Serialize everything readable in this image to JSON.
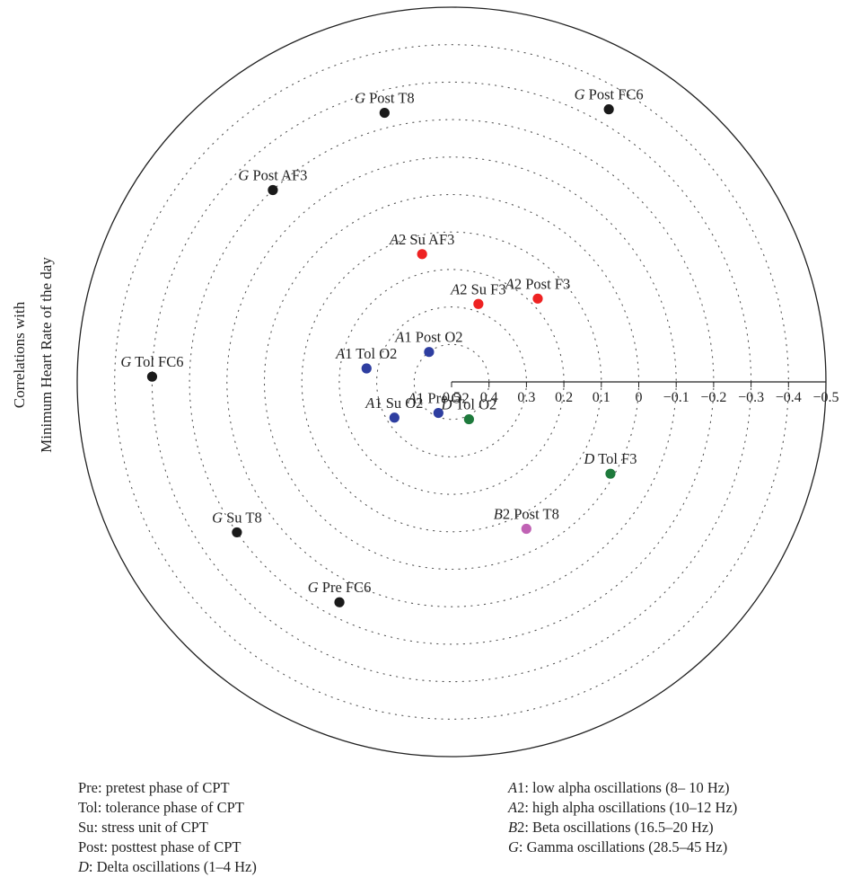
{
  "chart_data": {
    "type": "scatter",
    "coordinate_system": "polar",
    "title": "",
    "radial_axis": {
      "range": [
        0.5,
        -0.5
      ],
      "ticks": [
        "0.5",
        "0.4",
        "0.3",
        "0.2",
        "0.1",
        "0",
        "−0.1",
        "−0.2",
        "−0.3",
        "−0.4",
        "−0.5"
      ],
      "direction": "value decreases outward"
    },
    "ylabel_lines": [
      "Correlations with",
      "Minimum Heart Rate of the day"
    ],
    "grid": "dotted concentric circles",
    "colors": {
      "A1": "#2e3ea0",
      "A2": "#ee2222",
      "B2": "#c062b4",
      "D": "#1e7a3c",
      "G": "#1a1a1a"
    },
    "points": [
      {
        "band": "G",
        "label": "Post FC6",
        "r": -0.34,
        "angle_deg": 60
      },
      {
        "band": "G",
        "label": "Post T8",
        "r": -0.24,
        "angle_deg": 104
      },
      {
        "band": "G",
        "label": "Post AF3",
        "r": -0.2,
        "angle_deg": 133
      },
      {
        "band": "G",
        "label": "Tol FC6",
        "r": -0.3,
        "angle_deg": 179
      },
      {
        "band": "G",
        "label": "Su T8",
        "r": -0.2,
        "angle_deg": 215
      },
      {
        "band": "G",
        "label": "Pre FC6",
        "r": -0.16,
        "angle_deg": 243
      },
      {
        "band": "A2",
        "label": "Su AF3",
        "r": 0.15,
        "angle_deg": 103
      },
      {
        "band": "A2",
        "label": "Su F3",
        "r": 0.28,
        "angle_deg": 71
      },
      {
        "band": "A2",
        "label": "Post F3",
        "r": 0.18,
        "angle_deg": 44
      },
      {
        "band": "A1",
        "label": "Post O2",
        "r": 0.4,
        "angle_deg": 127
      },
      {
        "band": "A1",
        "label": "Tol O2",
        "r": 0.27,
        "angle_deg": 171
      },
      {
        "band": "A1",
        "label": "Su O2",
        "r": 0.32,
        "angle_deg": 212
      },
      {
        "band": "A1",
        "label": "Pre O2",
        "r": 0.41,
        "angle_deg": 247
      },
      {
        "band": "D",
        "label": "Tol O2",
        "r": 0.39,
        "angle_deg": 295
      },
      {
        "band": "D",
        "label": "Tol F3",
        "r": 0.01,
        "angle_deg": 330
      },
      {
        "band": "B2",
        "label": "Post T8",
        "r": 0.06,
        "angle_deg": 297
      }
    ]
  },
  "legend_left": [
    {
      "abbr": "Pre",
      "italic": false,
      "text": ": pretest phase of CPT"
    },
    {
      "abbr": "Tol",
      "italic": false,
      "text": ": tolerance phase of CPT"
    },
    {
      "abbr": "Su",
      "italic": false,
      "text": ": stress unit of CPT"
    },
    {
      "abbr": "Post",
      "italic": false,
      "text": ": posttest phase of CPT"
    },
    {
      "abbr": "D",
      "italic": true,
      "text": ": Delta oscillations (1–4 Hz)"
    }
  ],
  "legend_right": [
    {
      "abbr_letter": "A",
      "abbr_digit": "1",
      "text": ": low alpha oscillations (8– 10 Hz)"
    },
    {
      "abbr_letter": "A",
      "abbr_digit": "2",
      "text": ": high alpha oscillations (10–12 Hz)"
    },
    {
      "abbr_letter": "B",
      "abbr_digit": "2",
      "text": ": Beta oscillations (16.5–20 Hz)"
    },
    {
      "abbr_letter": "G",
      "abbr_digit": "",
      "text": ": Gamma oscillations (28.5–45 Hz)"
    }
  ]
}
